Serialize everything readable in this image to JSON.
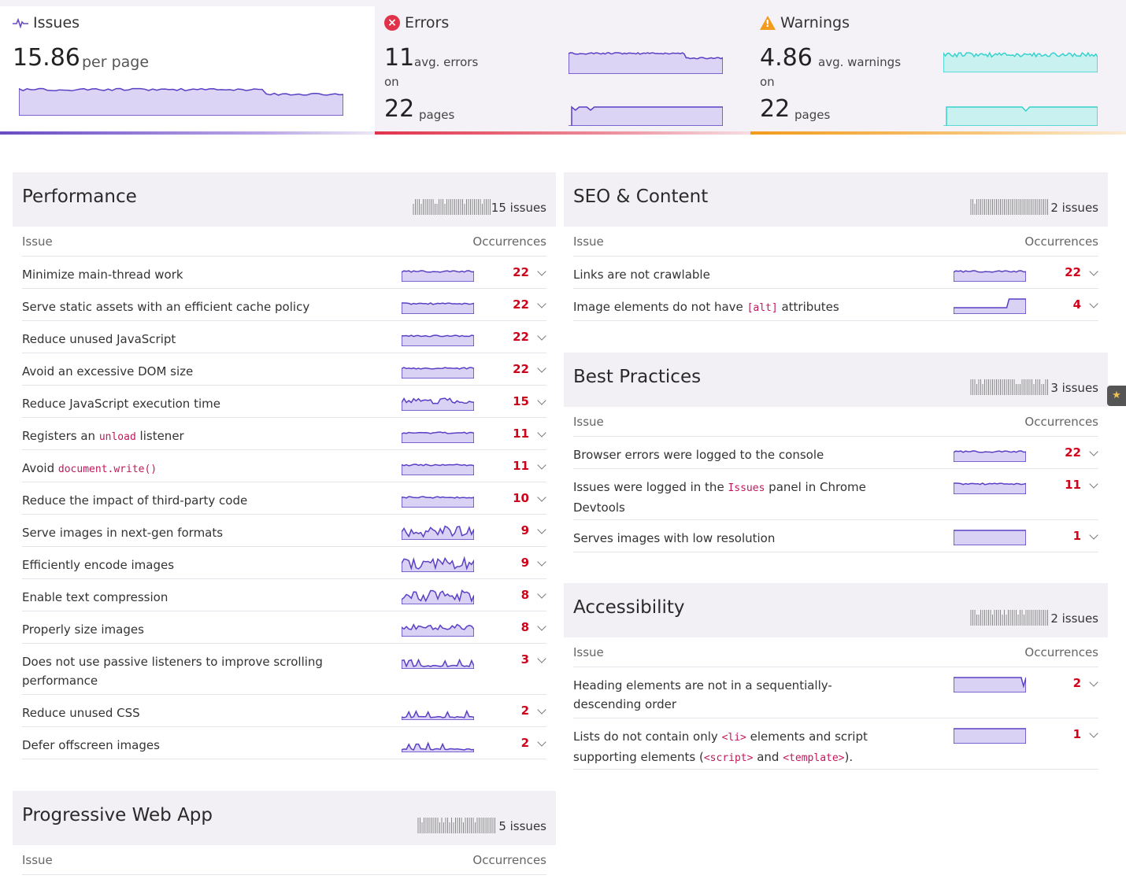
{
  "stats": {
    "issues": {
      "title": "Issues",
      "value": "15.86",
      "unit": "per page"
    },
    "errors": {
      "title": "Errors",
      "avg_value": "11",
      "avg_unit": "avg. errors",
      "on": "on",
      "pages_value": "22",
      "pages_unit": "pages"
    },
    "warnings": {
      "title": "Warnings",
      "avg_value": "4.86",
      "avg_unit": "avg. warnings",
      "on": "on",
      "pages_value": "22",
      "pages_unit": "pages"
    }
  },
  "colors": {
    "purple": "#5b3fc4",
    "fill": "#d9d2f5",
    "teal": "#37d2cf",
    "tealFill": "#c9f1ef",
    "error": "#d0021b"
  },
  "col_issue": "Issue",
  "col_occurrences": "Occurrences",
  "sections": {
    "performance": {
      "title": "Performance",
      "count": "15 issues",
      "rows": [
        {
          "parts": [
            {
              "t": "Minimize main-thread work"
            }
          ],
          "value": "22",
          "trend": "flat"
        },
        {
          "parts": [
            {
              "t": "Serve static assets with an efficient cache policy"
            }
          ],
          "value": "22",
          "trend": "flat"
        },
        {
          "parts": [
            {
              "t": "Reduce unused JavaScript"
            }
          ],
          "value": "22",
          "trend": "flat"
        },
        {
          "parts": [
            {
              "t": "Avoid an excessive DOM size"
            }
          ],
          "value": "22",
          "trend": "flat"
        },
        {
          "parts": [
            {
              "t": "Reduce JavaScript execution time"
            }
          ],
          "value": "15",
          "trend": "wavy"
        },
        {
          "parts": [
            {
              "t": "Registers an "
            },
            {
              "t": "unload",
              "code": true
            },
            {
              "t": " listener"
            }
          ],
          "value": "11",
          "trend": "flat"
        },
        {
          "parts": [
            {
              "t": "Avoid "
            },
            {
              "t": "document.write()",
              "code": true
            }
          ],
          "value": "11",
          "trend": "flat"
        },
        {
          "parts": [
            {
              "t": "Reduce the impact of third-party code"
            }
          ],
          "value": "10",
          "trend": "flat"
        },
        {
          "parts": [
            {
              "t": "Serve images in next-gen formats"
            }
          ],
          "value": "9",
          "trend": "spiky"
        },
        {
          "parts": [
            {
              "t": "Efficiently encode images"
            }
          ],
          "value": "9",
          "trend": "spiky"
        },
        {
          "parts": [
            {
              "t": "Enable text compression"
            }
          ],
          "value": "8",
          "trend": "spiky"
        },
        {
          "parts": [
            {
              "t": "Properly size images"
            }
          ],
          "value": "8",
          "trend": "wavy"
        },
        {
          "parts": [
            {
              "t": "Does not use passive listeners to improve scrolling"
            },
            {
              "t": "performance",
              "br": true
            }
          ],
          "value": "3",
          "trend": "low"
        },
        {
          "parts": [
            {
              "t": "Reduce unused CSS"
            }
          ],
          "value": "2",
          "trend": "low"
        },
        {
          "parts": [
            {
              "t": "Defer offscreen images"
            }
          ],
          "value": "2",
          "trend": "low"
        }
      ]
    },
    "seo": {
      "title": "SEO & Content",
      "count": "2 issues",
      "rows": [
        {
          "parts": [
            {
              "t": "Links are not crawlable"
            }
          ],
          "value": "22",
          "trend": "flat"
        },
        {
          "parts": [
            {
              "t": "Image elements do not have "
            },
            {
              "t": "[alt]",
              "code": true
            },
            {
              "t": " attributes"
            }
          ],
          "value": "4",
          "trend": "step"
        }
      ]
    },
    "best": {
      "title": "Best Practices",
      "count": "3 issues",
      "rows": [
        {
          "parts": [
            {
              "t": "Browser errors were logged to the console"
            }
          ],
          "value": "22",
          "trend": "flat"
        },
        {
          "parts": [
            {
              "t": "Issues were logged in the "
            },
            {
              "t": "Issues",
              "code": true
            },
            {
              "t": " panel in Chrome"
            },
            {
              "t": "Devtools",
              "br": true
            }
          ],
          "value": "11",
          "trend": "flat"
        },
        {
          "parts": [
            {
              "t": "Serves images with low resolution"
            }
          ],
          "value": "1",
          "trend": "top"
        }
      ]
    },
    "a11y": {
      "title": "Accessibility",
      "count": "2 issues",
      "rows": [
        {
          "parts": [
            {
              "t": "Heading elements are not in a sequentially-"
            },
            {
              "t": "descending order",
              "br": true
            }
          ],
          "value": "2",
          "trend": "dip"
        },
        {
          "parts": [
            {
              "t": "Lists do not contain only "
            },
            {
              "t": "<li>",
              "code": true
            },
            {
              "t": " elements and script"
            },
            {
              "t": "supporting elements (",
              "br": true
            },
            {
              "t": "<script>",
              "code": true
            },
            {
              "t": " and "
            },
            {
              "t": "<template>",
              "code": true
            },
            {
              "t": ")."
            }
          ],
          "value": "1",
          "trend": "top"
        }
      ]
    },
    "pwa": {
      "title": "Progressive Web App",
      "count": "5 issues",
      "rows": []
    }
  }
}
